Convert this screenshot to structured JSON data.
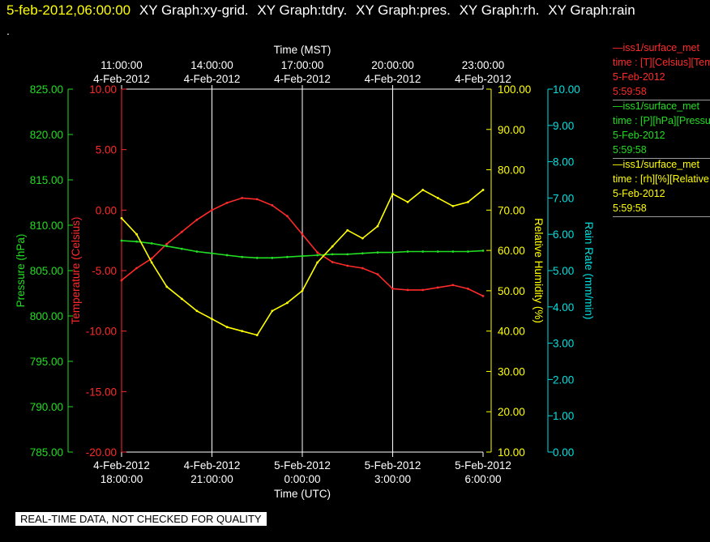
{
  "header": {
    "date": "5-feb-2012,06:00:00",
    "tabs": [
      "XY Graph:xy-grid.",
      "XY Graph:tdry.",
      "XY Graph:pres.",
      "XY Graph:rh.",
      "XY Graph:rain"
    ],
    "dot": "."
  },
  "legend": [
    {
      "line": "—iss1/surface_met",
      "units": "time : [T][Celsius][Temperature]",
      "date": "5-Feb-2012",
      "time": "5:59:58",
      "color": "#ff2a2a"
    },
    {
      "line": "—iss1/surface_met",
      "units": "time : [P][hPa][Pressure]",
      "date": "5-Feb-2012",
      "time": "5:59:58",
      "color": "#22dd22"
    },
    {
      "line": "—iss1/surface_met",
      "units": "time : [rh][%][Relative Humidity]",
      "date": "5-Feb-2012",
      "time": "5:59:58",
      "color": "#ffff00"
    }
  ],
  "footer": "REAL-TIME DATA, NOT CHECKED FOR QUALITY",
  "colors": {
    "temp": "#ff2a2a",
    "pres": "#22dd22",
    "rh": "#ffff00",
    "rain": "#00e0e0",
    "grid": "#ffffff"
  },
  "chart_data": {
    "type": "line",
    "top_axis": {
      "label": "Time (MST)",
      "ticks": [
        {
          "time": "11:00:00",
          "date": "4-Feb-2012"
        },
        {
          "time": "14:00:00",
          "date": "4-Feb-2012"
        },
        {
          "time": "17:00:00",
          "date": "4-Feb-2012"
        },
        {
          "time": "20:00:00",
          "date": "4-Feb-2012"
        },
        {
          "time": "23:00:00",
          "date": "4-Feb-2012"
        }
      ]
    },
    "bottom_axis": {
      "label": "Time (UTC)",
      "range": [
        "2012-02-04T18:00:00Z",
        "2012-02-05T06:00:00Z"
      ],
      "ticks": [
        {
          "date": "4-Feb-2012",
          "time": "18:00:00"
        },
        {
          "date": "4-Feb-2012",
          "time": "21:00:00"
        },
        {
          "date": "5-Feb-2012",
          "time": "0:00:00"
        },
        {
          "date": "5-Feb-2012",
          "time": "3:00:00"
        },
        {
          "date": "5-Feb-2012",
          "time": "6:00:00"
        }
      ]
    },
    "y_axes": [
      {
        "id": "pres",
        "label": "Pressure (hPa)",
        "range": [
          785,
          825
        ],
        "ticks": [
          "825.00",
          "820.00",
          "815.00",
          "810.00",
          "805.00",
          "800.00",
          "795.00",
          "790.00",
          "785.00"
        ]
      },
      {
        "id": "temp",
        "label": "Temperature (Celsius)",
        "range": [
          -20,
          10
        ],
        "ticks": [
          "10.00",
          "5.00",
          "0.00",
          "-5.00",
          "-10.00",
          "-15.00",
          "-20.00"
        ]
      },
      {
        "id": "rh",
        "label": "Relative Humidity (%)",
        "range": [
          10,
          100
        ],
        "ticks": [
          "100.00",
          "90.00",
          "80.00",
          "70.00",
          "60.00",
          "50.00",
          "40.00",
          "30.00",
          "20.00",
          "10.00"
        ]
      },
      {
        "id": "rain",
        "label": "Rain Rate (mm/min)",
        "range": [
          0,
          10.5
        ],
        "ticks": [
          "10.00",
          "9.00",
          "8.00",
          "7.00",
          "6.00",
          "5.00",
          "4.00",
          "3.00",
          "2.00",
          "1.00",
          "0.00"
        ]
      }
    ],
    "series": [
      {
        "axis": "temp",
        "x_hours_utc": [
          18.0,
          18.5,
          19.0,
          19.5,
          20.0,
          20.5,
          21.0,
          21.5,
          22.0,
          22.5,
          23.0,
          23.5,
          24.0,
          24.5,
          25.0,
          25.5,
          26.0,
          26.5,
          27.0,
          27.5,
          28.0,
          28.5,
          29.0,
          29.5,
          30.0
        ],
        "values": [
          -5.8,
          -4.8,
          -4.0,
          -2.8,
          -1.8,
          -0.8,
          0.0,
          0.6,
          1.0,
          0.9,
          0.4,
          -0.5,
          -2.0,
          -3.5,
          -4.3,
          -4.6,
          -4.8,
          -5.3,
          -6.5,
          -6.6,
          -6.6,
          -6.4,
          -6.2,
          -6.5,
          -7.1
        ]
      },
      {
        "axis": "pres",
        "x_hours_utc": [
          18.0,
          18.5,
          19.0,
          19.5,
          20.0,
          20.5,
          21.0,
          21.5,
          22.0,
          22.5,
          23.0,
          23.5,
          24.0,
          24.5,
          25.0,
          25.5,
          26.0,
          26.5,
          27.0,
          27.5,
          28.0,
          28.5,
          29.0,
          29.5,
          30.0
        ],
        "values": [
          808.3,
          808.2,
          808.0,
          807.7,
          807.4,
          807.1,
          806.9,
          806.7,
          806.5,
          806.4,
          806.4,
          806.5,
          806.6,
          806.7,
          806.8,
          806.8,
          806.9,
          807.0,
          807.0,
          807.1,
          807.1,
          807.1,
          807.1,
          807.1,
          807.2
        ]
      },
      {
        "axis": "rh",
        "x_hours_utc": [
          18.0,
          18.5,
          19.0,
          19.5,
          20.0,
          20.5,
          21.0,
          21.5,
          22.0,
          22.5,
          23.0,
          23.5,
          24.0,
          24.5,
          25.0,
          25.5,
          26.0,
          26.5,
          27.0,
          27.5,
          28.0,
          28.5,
          29.0,
          29.5,
          30.0
        ],
        "values": [
          68,
          64,
          57,
          51,
          48,
          45,
          43,
          41,
          40,
          39,
          45,
          47,
          50,
          57,
          61,
          65,
          63,
          66,
          74,
          72,
          75,
          73,
          71,
          72,
          75
        ]
      }
    ]
  }
}
